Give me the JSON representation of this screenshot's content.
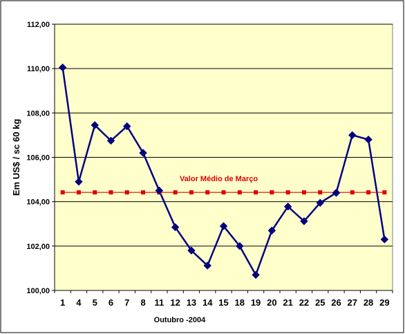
{
  "chart_data": {
    "type": "line",
    "xlabel": "Outubro -2004",
    "ylabel": "Em US$ / sc 60 kg",
    "categories": [
      "1",
      "4",
      "5",
      "6",
      "7",
      "8",
      "11",
      "12",
      "13",
      "14",
      "15",
      "18",
      "19",
      "20",
      "21",
      "22",
      "25",
      "26",
      "27",
      "28",
      "29"
    ],
    "ylim": [
      100,
      112
    ],
    "yticks": [
      "100,00",
      "102,00",
      "104,00",
      "106,00",
      "108,00",
      "110,00",
      "112,00"
    ],
    "grid": true,
    "series": [
      {
        "values": [
          110.05,
          104.9,
          107.45,
          106.75,
          107.4,
          106.2,
          104.5,
          102.85,
          101.8,
          101.12,
          102.9,
          102.0,
          100.7,
          102.7,
          103.78,
          103.12,
          103.95,
          104.4,
          107.0,
          106.8,
          102.3
        ],
        "color": "#000080",
        "marker": "diamond"
      },
      {
        "name": "Valor Médio de Março",
        "values": [
          104.42,
          104.42,
          104.42,
          104.42,
          104.42,
          104.42,
          104.42,
          104.42,
          104.42,
          104.42,
          104.42,
          104.42,
          104.42,
          104.42,
          104.42,
          104.42,
          104.42,
          104.42,
          104.42,
          104.42,
          104.42
        ],
        "color": "#e00000",
        "marker": "square"
      }
    ],
    "annotation": "Valor Médio de Março",
    "plot_background": "#ffffcc"
  }
}
